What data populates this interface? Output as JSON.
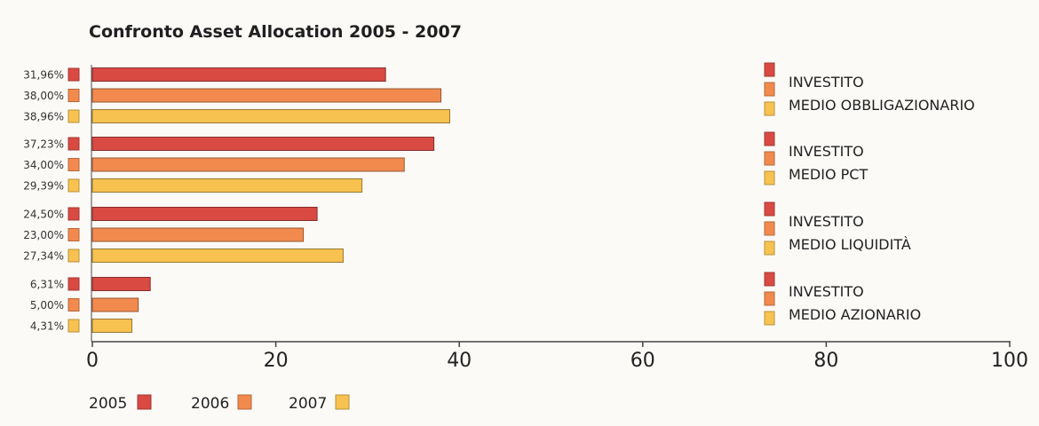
{
  "chart_data": {
    "type": "bar",
    "orientation": "horizontal",
    "title": "Confronto Asset Allocation 2005 - 2007",
    "xlabel": "",
    "ylabel": "",
    "xlim": [
      0,
      100
    ],
    "x_ticks": [
      "0",
      "20",
      "40",
      "60",
      "80",
      "100"
    ],
    "grid": false,
    "legend_position": "bottom",
    "colors": {
      "2005": "#d94a43",
      "2006": "#f28a4e",
      "2007": "#f7c24f"
    },
    "series": [
      {
        "name": "2005",
        "values": [
          31.96,
          37.23,
          24.5,
          6.31
        ],
        "labels": [
          "31,96%",
          "37,23%",
          "24,50%",
          "6,31%"
        ]
      },
      {
        "name": "2006",
        "values": [
          38.0,
          34.0,
          23.0,
          5.0
        ],
        "labels": [
          "38,00%",
          "34,00%",
          "23,00%",
          "5,00%"
        ]
      },
      {
        "name": "2007",
        "values": [
          38.96,
          29.39,
          27.34,
          4.31
        ],
        "labels": [
          "38,96%",
          "29,39%",
          "27,34%",
          "4,31%"
        ]
      }
    ],
    "groups": [
      {
        "line1": "INVESTITO",
        "line2": "MEDIO OBBLIGAZIONARIO"
      },
      {
        "line1": "INVESTITO",
        "line2": "MEDIO PCT"
      },
      {
        "line1": "INVESTITO",
        "line2": "MEDIO LIQUIDITÀ"
      },
      {
        "line1": "INVESTITO",
        "line2": "MEDIO AZIONARIO"
      }
    ]
  }
}
